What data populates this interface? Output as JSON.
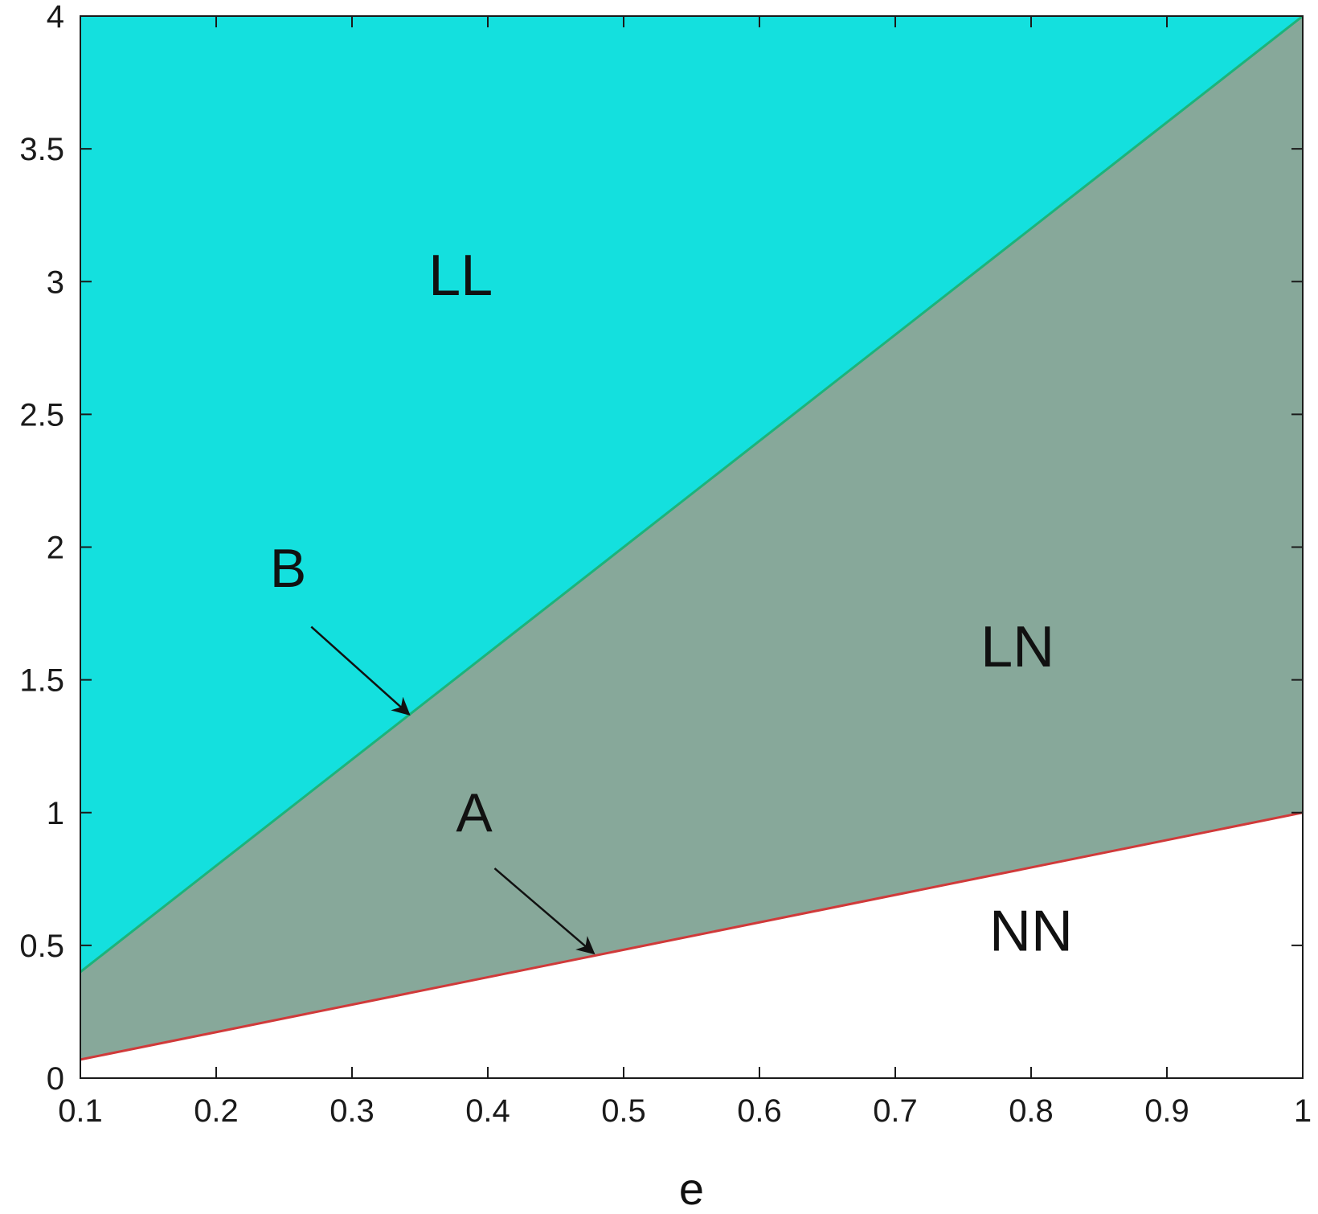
{
  "chart_data": {
    "type": "area",
    "title": "",
    "xlabel": "e",
    "ylabel": "",
    "xlim": [
      0.1,
      1.0
    ],
    "ylim": [
      0,
      4
    ],
    "xticks": [
      0.1,
      0.2,
      0.3,
      0.4,
      0.5,
      0.6,
      0.7,
      0.8,
      0.9,
      1.0
    ],
    "xtick_labels": [
      "0.1",
      "0.2",
      "0.3",
      "0.4",
      "0.5",
      "0.6",
      "0.7",
      "0.8",
      "0.9",
      "1"
    ],
    "yticks": [
      0,
      0.5,
      1,
      1.5,
      2,
      2.5,
      3,
      3.5,
      4
    ],
    "ytick_labels": [
      "0",
      "0.5",
      "1",
      "1.5",
      "2",
      "2.5",
      "3",
      "3.5",
      "4"
    ],
    "grid": false,
    "curves": [
      {
        "id": "A",
        "color": "#d03a3a",
        "x": [
          0.1,
          1.0
        ],
        "y": [
          0.07,
          1.0
        ]
      },
      {
        "id": "B",
        "color": "#1db37a",
        "x": [
          0.1,
          1.0
        ],
        "y": [
          0.4,
          4.0
        ]
      }
    ],
    "regions": [
      {
        "label": "LL",
        "color": "#14e0de",
        "bounded_by": "above B"
      },
      {
        "label": "LN",
        "color": "#87a89a",
        "bounded_by": "between A and B"
      },
      {
        "label": "NN",
        "color": "#ffffff",
        "bounded_by": "below A"
      }
    ],
    "region_labels": [
      {
        "text": "LL",
        "x": 0.38,
        "y": 2.95
      },
      {
        "text": "LN",
        "x": 0.79,
        "y": 1.55
      },
      {
        "text": "NN",
        "x": 0.8,
        "y": 0.48
      }
    ],
    "annotations": [
      {
        "text": "B",
        "label_x": 0.253,
        "label_y": 1.85,
        "arrow_from": [
          0.27,
          1.7
        ],
        "arrow_to": [
          0.342,
          1.37
        ]
      },
      {
        "text": "A",
        "label_x": 0.39,
        "label_y": 0.93,
        "arrow_from": [
          0.405,
          0.79
        ],
        "arrow_to": [
          0.478,
          0.47
        ]
      }
    ]
  }
}
